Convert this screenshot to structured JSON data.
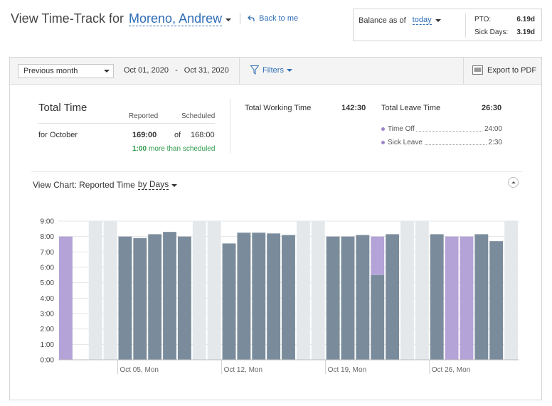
{
  "header": {
    "title": "View Time-Track for",
    "employee": "Moreno, Andrew",
    "back_label": "Back to me"
  },
  "balance": {
    "label": "Balance as of",
    "date_label": "today",
    "pto_label": "PTO:",
    "pto_value": "6.19d",
    "sick_label": "Sick Days:",
    "sick_value": "3.19d"
  },
  "toolbar": {
    "period_selected": "Previous month",
    "date_from": "Oct 01, 2020",
    "date_sep": "-",
    "date_to": "Oct 31, 2020",
    "filters_label": "Filters",
    "export_label": "Export to PDF"
  },
  "summary": {
    "total_time_title": "Total Time",
    "reported_header": "Reported",
    "scheduled_header": "Scheduled",
    "period_label": "for October",
    "reported_value": "169:00",
    "of_label": "of",
    "scheduled_value": "168:00",
    "diff_value": "1:00",
    "diff_label": "more than scheduled",
    "working_label": "Total Working Time",
    "working_value": "142:30",
    "leave_label": "Total Leave Time",
    "leave_value": "26:30",
    "leave_items": [
      {
        "name": "Time Off",
        "value": "24:00"
      },
      {
        "name": "Sick Leave",
        "value": "2:30"
      }
    ]
  },
  "chart_section": {
    "label": "View Chart: Reported Time",
    "by_label": "by Days"
  },
  "chart_data": {
    "type": "bar",
    "ylim": [
      0,
      9
    ],
    "y_tick_labels": [
      "0:00",
      "1:00",
      "2:00",
      "3:00",
      "4:00",
      "5:00",
      "6:00",
      "7:00",
      "8:00",
      "9:00"
    ],
    "x_tick_labels": [
      {
        "day": 5,
        "label": "Oct 05, Mon"
      },
      {
        "day": 12,
        "label": "Oct 12, Mon"
      },
      {
        "day": 19,
        "label": "Oct 19, Mon"
      },
      {
        "day": 26,
        "label": "Oct 26, Mon"
      }
    ],
    "days": [
      1,
      2,
      3,
      4,
      5,
      6,
      7,
      8,
      9,
      10,
      11,
      12,
      13,
      14,
      15,
      16,
      17,
      18,
      19,
      20,
      21,
      22,
      23,
      24,
      25,
      26,
      27,
      28,
      29,
      30,
      31
    ],
    "weekend_days": [
      3,
      4,
      10,
      11,
      17,
      18,
      24,
      25,
      31
    ],
    "series": [
      {
        "color": "#7a8c9c",
        "values": [
          0,
          0,
          0,
          0,
          8,
          7.9,
          8.15,
          8.3,
          8,
          0,
          0,
          7.55,
          8.25,
          8.25,
          8.2,
          8.1,
          0,
          0,
          8,
          8,
          8.1,
          5.5,
          8.15,
          0,
          0,
          8.15,
          0,
          0,
          8.15,
          7.7,
          0
        ]
      },
      {
        "color": "#b3a3d6",
        "values": [
          8,
          0,
          0,
          0,
          0,
          0,
          0,
          0,
          0,
          0,
          0,
          0,
          0,
          0,
          0,
          0,
          0,
          0,
          0,
          0,
          0,
          2.5,
          0,
          0,
          0,
          0,
          8,
          8,
          0,
          0,
          0
        ]
      }
    ],
    "weekend_color": "#e4e8eb"
  }
}
